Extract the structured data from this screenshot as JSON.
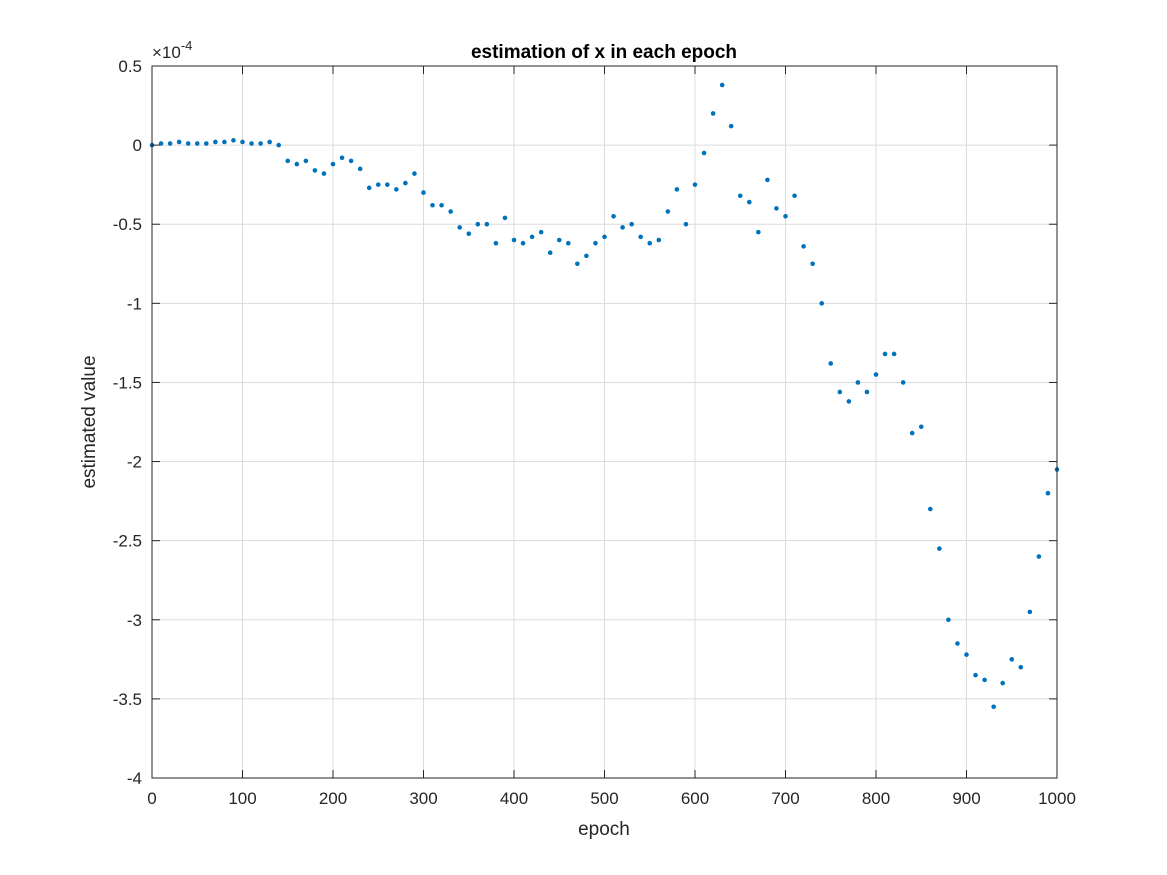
{
  "chart_data": {
    "type": "scatter",
    "title": "estimation of x in each epoch",
    "xlabel": "epoch",
    "ylabel": "estimated value",
    "xlim": [
      0,
      1000
    ],
    "ylim": [
      -4,
      0.5
    ],
    "y_exponent_label": "×10",
    "y_exponent_power": "-4",
    "x_ticks": [
      0,
      100,
      200,
      300,
      400,
      500,
      600,
      700,
      800,
      900,
      1000
    ],
    "x_tick_labels": [
      "0",
      "100",
      "200",
      "300",
      "400",
      "500",
      "600",
      "700",
      "800",
      "900",
      "1000"
    ],
    "y_ticks": [
      0.5,
      0,
      -0.5,
      -1,
      -1.5,
      -2,
      -2.5,
      -3,
      -3.5,
      -4
    ],
    "y_tick_labels": [
      "0.5",
      "0",
      "-0.5",
      "-1",
      "-1.5",
      "-2",
      "-2.5",
      "-3",
      "-3.5",
      "-4"
    ],
    "grid": true,
    "marker_color": "#0072BD",
    "series": [
      {
        "points": [
          [
            0,
            0
          ],
          [
            10,
            0.01
          ],
          [
            20,
            0.01
          ],
          [
            30,
            0.02
          ],
          [
            40,
            0.01
          ],
          [
            50,
            0.01
          ],
          [
            60,
            0.01
          ],
          [
            70,
            0.02
          ],
          [
            80,
            0.02
          ],
          [
            90,
            0.03
          ],
          [
            100,
            0.02
          ],
          [
            110,
            0.01
          ],
          [
            120,
            0.01
          ],
          [
            130,
            0.02
          ],
          [
            140,
            0
          ],
          [
            150,
            -0.1
          ],
          [
            160,
            -0.12
          ],
          [
            170,
            -0.1
          ],
          [
            180,
            -0.16
          ],
          [
            190,
            -0.18
          ],
          [
            200,
            -0.12
          ],
          [
            210,
            -0.08
          ],
          [
            220,
            -0.1
          ],
          [
            230,
            -0.15
          ],
          [
            240,
            -0.27
          ],
          [
            250,
            -0.25
          ],
          [
            260,
            -0.25
          ],
          [
            270,
            -0.28
          ],
          [
            280,
            -0.24
          ],
          [
            290,
            -0.18
          ],
          [
            300,
            -0.3
          ],
          [
            310,
            -0.38
          ],
          [
            320,
            -0.38
          ],
          [
            330,
            -0.42
          ],
          [
            340,
            -0.52
          ],
          [
            350,
            -0.56
          ],
          [
            360,
            -0.5
          ],
          [
            370,
            -0.5
          ],
          [
            380,
            -0.62
          ],
          [
            390,
            -0.46
          ],
          [
            400,
            -0.6
          ],
          [
            410,
            -0.62
          ],
          [
            420,
            -0.58
          ],
          [
            430,
            -0.55
          ],
          [
            440,
            -0.68
          ],
          [
            450,
            -0.6
          ],
          [
            460,
            -0.62
          ],
          [
            470,
            -0.75
          ],
          [
            480,
            -0.7
          ],
          [
            490,
            -0.62
          ],
          [
            500,
            -0.58
          ],
          [
            510,
            -0.45
          ],
          [
            520,
            -0.52
          ],
          [
            530,
            -0.5
          ],
          [
            540,
            -0.58
          ],
          [
            550,
            -0.62
          ],
          [
            560,
            -0.6
          ],
          [
            570,
            -0.42
          ],
          [
            580,
            -0.28
          ],
          [
            590,
            -0.5
          ],
          [
            600,
            -0.25
          ],
          [
            610,
            -0.05
          ],
          [
            620,
            0.2
          ],
          [
            630,
            0.38
          ],
          [
            640,
            0.12
          ],
          [
            650,
            -0.32
          ],
          [
            660,
            -0.36
          ],
          [
            670,
            -0.55
          ],
          [
            680,
            -0.22
          ],
          [
            690,
            -0.4
          ],
          [
            700,
            -0.45
          ],
          [
            710,
            -0.32
          ],
          [
            720,
            -0.64
          ],
          [
            730,
            -0.75
          ],
          [
            740,
            -1.0
          ],
          [
            750,
            -1.38
          ],
          [
            760,
            -1.56
          ],
          [
            770,
            -1.62
          ],
          [
            780,
            -1.5
          ],
          [
            790,
            -1.56
          ],
          [
            800,
            -1.45
          ],
          [
            810,
            -1.32
          ],
          [
            820,
            -1.32
          ],
          [
            830,
            -1.5
          ],
          [
            840,
            -1.82
          ],
          [
            850,
            -1.78
          ],
          [
            860,
            -2.3
          ],
          [
            870,
            -2.55
          ],
          [
            880,
            -3.0
          ],
          [
            890,
            -3.15
          ],
          [
            900,
            -3.22
          ],
          [
            910,
            -3.35
          ],
          [
            920,
            -3.38
          ],
          [
            930,
            -3.55
          ],
          [
            940,
            -3.4
          ],
          [
            950,
            -3.25
          ],
          [
            960,
            -3.3
          ],
          [
            970,
            -2.95
          ],
          [
            980,
            -2.6
          ],
          [
            990,
            -2.2
          ],
          [
            1000,
            -2.05
          ]
        ]
      }
    ]
  }
}
